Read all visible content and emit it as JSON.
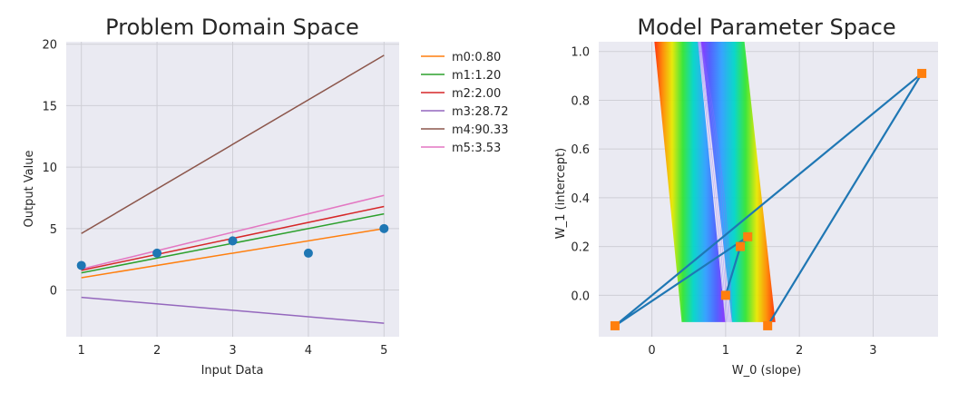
{
  "chart_data": [
    {
      "type": "line",
      "title": "Problem Domain Space",
      "xlabel": "Input Data",
      "ylabel": "Output Value",
      "xlim": [
        0.8,
        5.2
      ],
      "ylim": [
        -3.8,
        20.2
      ],
      "xticks": [
        1,
        2,
        3,
        4,
        5
      ],
      "yticks": [
        0,
        5,
        10,
        15,
        20
      ],
      "grid": true,
      "legend_placement": "outside-right",
      "points": {
        "x": [
          1,
          2,
          3,
          4,
          5
        ],
        "y": [
          2,
          3,
          4,
          3,
          5
        ],
        "color": "#1f77b4"
      },
      "series": [
        {
          "name": "m0:0.80",
          "x": [
            1,
            5
          ],
          "y": [
            1.0,
            5.0
          ],
          "color": "#ff7f0e"
        },
        {
          "name": "m1:1.20",
          "x": [
            1,
            5
          ],
          "y": [
            1.4,
            6.2
          ],
          "color": "#2ca02c"
        },
        {
          "name": "m2:2.00",
          "x": [
            1,
            5
          ],
          "y": [
            1.6,
            6.8
          ],
          "color": "#d62728"
        },
        {
          "name": "m3:28.72",
          "x": [
            1,
            5
          ],
          "y": [
            -0.6,
            -2.7
          ],
          "color": "#9467bd"
        },
        {
          "name": "m4:90.33",
          "x": [
            1,
            5
          ],
          "y": [
            4.6,
            19.1
          ],
          "color": "#8c564b"
        },
        {
          "name": "m5:3.53",
          "x": [
            1,
            5
          ],
          "y": [
            1.7,
            7.7
          ],
          "color": "#e377c2"
        }
      ]
    },
    {
      "type": "line",
      "title": "Model Parameter Space",
      "xlabel": "W_0 (slope)",
      "ylabel": "W_1 (intercept)",
      "xlim": [
        -0.72,
        3.88
      ],
      "ylim": [
        -0.17,
        1.04
      ],
      "xticks": [
        0,
        1,
        2,
        3
      ],
      "yticks": [
        0.0,
        0.2,
        0.4,
        0.6,
        0.8,
        1.0
      ],
      "grid": true,
      "contour_bands": {
        "y_range": [
          -0.11,
          1.04
        ],
        "left_band": {
          "x_at_bottom": 0.7,
          "x_at_top": 0.33
        },
        "right_band": {
          "x_at_bottom": 1.38,
          "x_at_top": 0.96
        }
      },
      "path": {
        "color": "#1f77b4",
        "marker_color": "#ff7f0e",
        "x": [
          1.0,
          1.2,
          1.3,
          -0.5,
          3.66,
          1.57
        ],
        "y": [
          0.0,
          0.2,
          0.24,
          -0.125,
          0.91,
          -0.125
        ]
      }
    }
  ]
}
